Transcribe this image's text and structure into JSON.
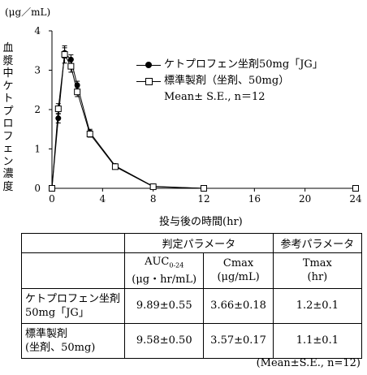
{
  "chart_data": {
    "type": "line",
    "unit_label": "(μg／mL)",
    "ylabel": "血漿中ケトプロフェン濃度",
    "xlabel": "投与後の時間(hr)",
    "ylim": [
      0,
      4
    ],
    "yticks": [
      "0",
      "1",
      "2",
      "3",
      "4"
    ],
    "xlim": [
      0,
      24
    ],
    "xticks": [
      "0",
      "4",
      "8",
      "12",
      "16",
      "20",
      "24"
    ],
    "series": [
      {
        "name": "ケトプロフェン坐剤50mg「JG」",
        "marker": "filled-circle",
        "x": [
          0,
          0.5,
          1,
          1.5,
          2,
          3,
          5,
          8,
          12,
          24
        ],
        "y": [
          0,
          1.78,
          3.44,
          3.27,
          2.62,
          1.42,
          0.57,
          0.05,
          0,
          0
        ],
        "err": [
          0,
          0.12,
          0.13,
          0.12,
          0.1,
          0.08,
          0.05,
          0.02,
          0,
          0
        ]
      },
      {
        "name": "標準製剤（坐剤、50mg）",
        "marker": "open-square",
        "x": [
          0,
          0.5,
          1,
          1.5,
          2,
          3,
          5,
          8,
          12,
          24
        ],
        "y": [
          0,
          2.02,
          3.4,
          3.1,
          2.45,
          1.38,
          0.55,
          0.04,
          0,
          0
        ],
        "err": [
          0,
          0.13,
          0.22,
          0.15,
          0.12,
          0.08,
          0.05,
          0.02,
          0,
          0
        ]
      }
    ],
    "legend_note": "Mean± S.E., n＝12"
  },
  "table": {
    "group_headers": [
      "判定パラメータ",
      "参考パラメータ"
    ],
    "col_headers": [
      {
        "main": "AUC",
        "sub": "0-24",
        "unit": "(μg・hr/mL)"
      },
      {
        "main": "Cmax",
        "sub": "",
        "unit": "(μg/mL)"
      },
      {
        "main": "Tmax",
        "sub": "",
        "unit": "(hr)"
      }
    ],
    "rows": [
      {
        "label1": "ケトプロフェン坐剤",
        "label2": "50mg「JG」",
        "auc": "9.89±0.55",
        "cmax": "3.66±0.18",
        "tmax": "1.2±0.1"
      },
      {
        "label1": "標準製剤",
        "label2": "(坐剤、50mg)",
        "auc": "9.58±0.50",
        "cmax": "3.57±0.17",
        "tmax": "1.1±0.1"
      }
    ],
    "footnote": "(Mean±S.E., n=12)"
  }
}
